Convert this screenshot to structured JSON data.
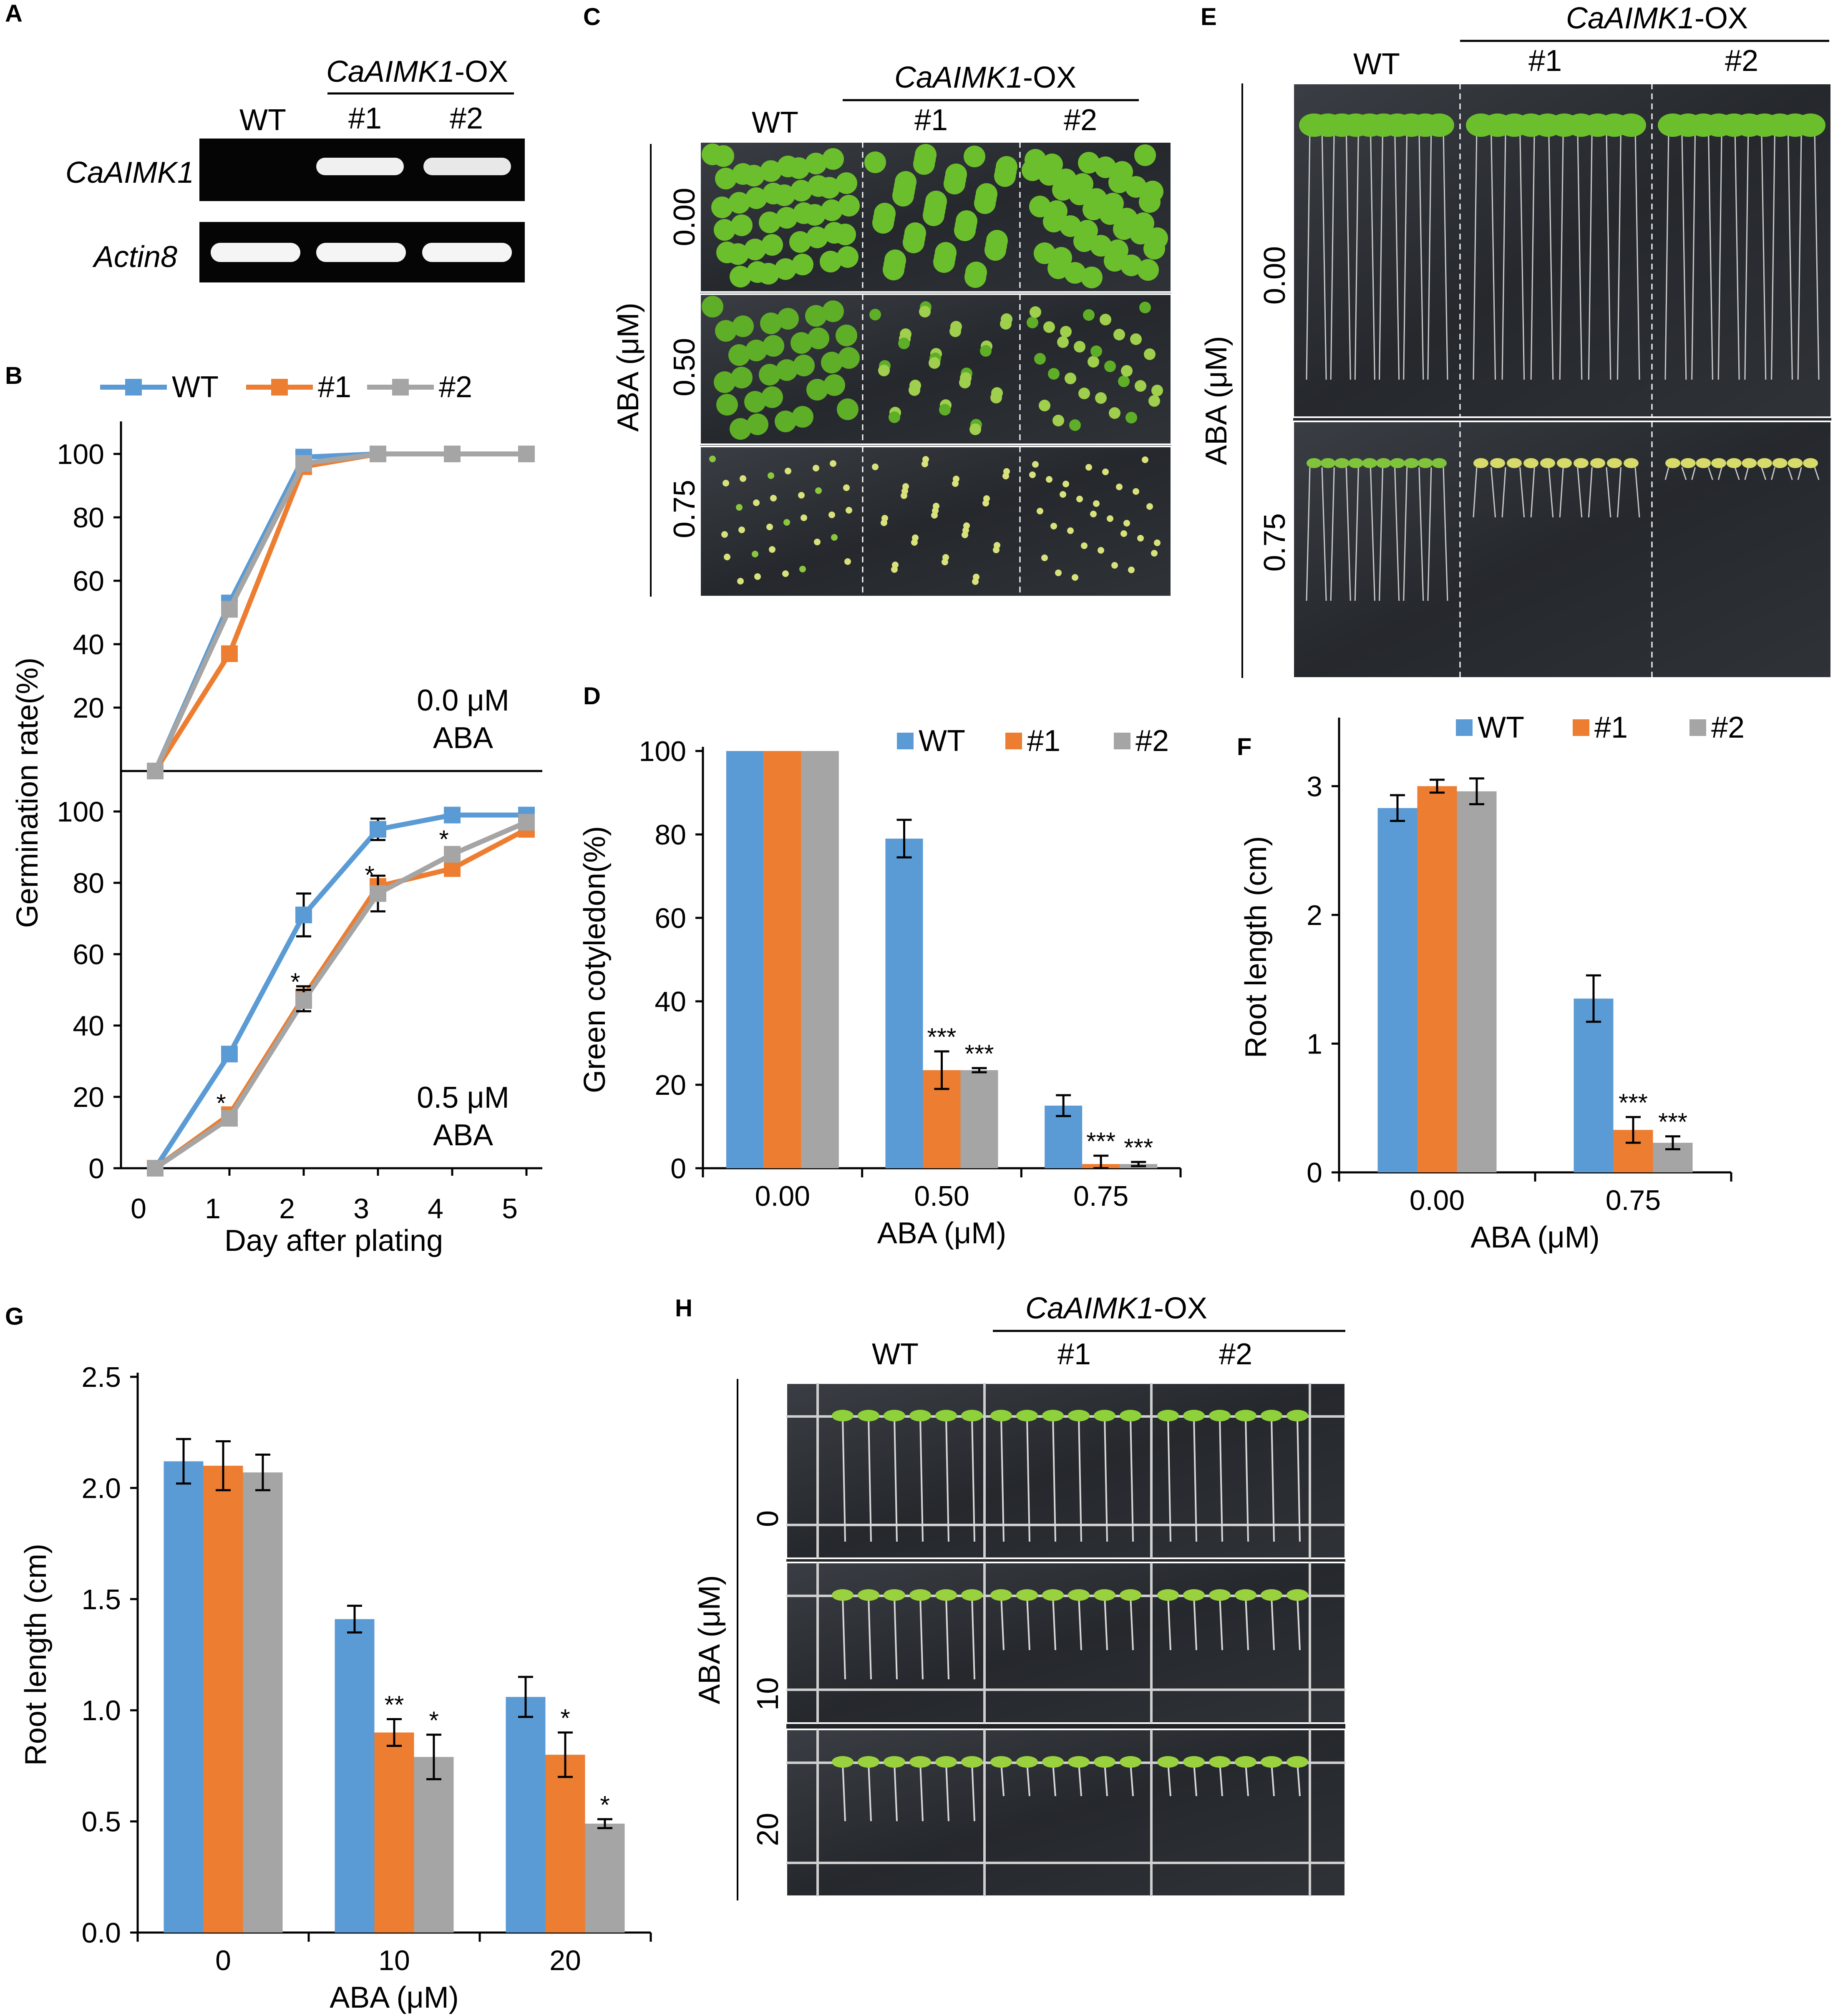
{
  "colors": {
    "wt": "#5b9bd5",
    "oe1": "#ed7d31",
    "oe2": "#a5a5a5"
  },
  "panels": {
    "A": {
      "label": "A",
      "group_label_italic": "CaAIMK1",
      "group_label_suffix": "-OX",
      "columns": [
        "WT",
        "#1",
        "#2"
      ],
      "rows": [
        "CaAIMK1",
        "Actin8"
      ]
    },
    "C": {
      "label": "C",
      "group_label_italic": "CaAIMK1",
      "group_label_suffix": "-OX",
      "columns": [
        "WT",
        "#1",
        "#2"
      ],
      "side_label": "ABA (μM)",
      "rows": [
        "0.00",
        "0.50",
        "0.75"
      ]
    },
    "E": {
      "label": "E",
      "group_label_italic": "CaAIMK1",
      "group_label_suffix": "-OX",
      "columns": [
        "WT",
        "#1",
        "#2"
      ],
      "side_label": "ABA (μM)",
      "rows": [
        "0.00",
        "0.75"
      ]
    },
    "H": {
      "label": "H",
      "group_label_italic": "CaAIMK1",
      "group_label_suffix": "-OX",
      "columns": [
        "WT",
        "#1",
        "#2"
      ],
      "side_label": "ABA (μM)",
      "rows": [
        "0",
        "10",
        "20"
      ]
    }
  },
  "chart_data": [
    {
      "id": "B",
      "label": "B",
      "type": "line",
      "ylabel": "Germination rate(%)",
      "xlabel": "Day after plating",
      "x": [
        0,
        1,
        2,
        3,
        4,
        5
      ],
      "xticks": [
        "0",
        "1",
        "2",
        "3",
        "4",
        "5"
      ],
      "legend": [
        "WT",
        "#1",
        "#2"
      ],
      "legend_placement": "top",
      "subplots": [
        {
          "annotation": [
            "0.0 μM",
            "ABA"
          ],
          "ylim": [
            0,
            100
          ],
          "yticks": [
            "20",
            "40",
            "60",
            "80",
            "100"
          ],
          "series": [
            {
              "name": "WT",
              "values": [
                0,
                53,
                99,
                100,
                100,
                100
              ],
              "err": [
                0,
                2,
                1,
                0,
                0,
                0
              ]
            },
            {
              "name": "#1",
              "values": [
                0,
                37,
                96,
                100,
                100,
                100
              ],
              "err": [
                0,
                2,
                1,
                0,
                0,
                0
              ]
            },
            {
              "name": "#2",
              "values": [
                0,
                51,
                97,
                100,
                100,
                100
              ],
              "err": [
                0,
                2,
                1,
                0,
                0,
                0
              ]
            }
          ],
          "stars": []
        },
        {
          "annotation": [
            "0.5 μM",
            "ABA"
          ],
          "ylim": [
            0,
            100
          ],
          "yticks": [
            "0",
            "20",
            "40",
            "60",
            "80",
            "100"
          ],
          "series": [
            {
              "name": "WT",
              "values": [
                0,
                32,
                71,
                95,
                99,
                99
              ],
              "err": [
                0,
                1.5,
                6,
                3,
                1,
                1
              ]
            },
            {
              "name": "#1",
              "values": [
                0,
                15,
                48,
                79,
                84,
                95
              ],
              "err": [
                0,
                1.5,
                3,
                2,
                1.5,
                2
              ]
            },
            {
              "name": "#2",
              "values": [
                0,
                14,
                47,
                77,
                88,
                97
              ],
              "err": [
                0,
                1.5,
                3,
                5,
                2,
                2
              ]
            }
          ],
          "stars": [
            {
              "x": 1,
              "y": 17,
              "text": "*"
            },
            {
              "x": 2,
              "y": 51,
              "text": "*"
            },
            {
              "x": 3,
              "y": 81,
              "text": "*"
            },
            {
              "x": 4,
              "y": 91,
              "text": "*"
            }
          ]
        }
      ]
    },
    {
      "id": "D",
      "label": "D",
      "type": "bar",
      "categories": [
        "0.00",
        "0.50",
        "0.75"
      ],
      "xlabel": "ABA (μM)",
      "ylabel": "Green cotyledon(%)",
      "ylim": [
        0,
        100
      ],
      "yticks": [
        "0",
        "20",
        "40",
        "60",
        "80",
        "100"
      ],
      "legend_placement": "top-right",
      "series": [
        {
          "name": "WT",
          "values": [
            100,
            79,
            15
          ],
          "err": [
            0,
            4.5,
            2.5
          ]
        },
        {
          "name": "#1",
          "values": [
            100,
            23.5,
            1
          ],
          "err": [
            0,
            4.5,
            2
          ]
        },
        {
          "name": "#2",
          "values": [
            100,
            23.5,
            1
          ],
          "err": [
            0,
            0.5,
            0.5
          ]
        }
      ],
      "stars": [
        {
          "cat": 1,
          "series": 1,
          "text": "***"
        },
        {
          "cat": 1,
          "series": 2,
          "text": "***"
        },
        {
          "cat": 2,
          "series": 1,
          "text": "***"
        },
        {
          "cat": 2,
          "series": 2,
          "text": "***"
        }
      ]
    },
    {
      "id": "F",
      "label": "F",
      "type": "bar",
      "categories": [
        "0.00",
        "0.75"
      ],
      "xlabel": "ABA (μM)",
      "ylabel": "Root length (cm)",
      "ylim": [
        0,
        3.5
      ],
      "yticks": [
        "0",
        "1",
        "2",
        "3"
      ],
      "legend_placement": "top",
      "series": [
        {
          "name": "WT",
          "values": [
            2.83,
            1.35
          ],
          "err": [
            0.1,
            0.18
          ]
        },
        {
          "name": "#1",
          "values": [
            3.0,
            0.33
          ],
          "err": [
            0.05,
            0.1
          ]
        },
        {
          "name": "#2",
          "values": [
            2.96,
            0.23
          ],
          "err": [
            0.1,
            0.05
          ]
        }
      ],
      "stars": [
        {
          "cat": 1,
          "series": 1,
          "text": "***"
        },
        {
          "cat": 1,
          "series": 2,
          "text": "***"
        }
      ]
    },
    {
      "id": "G",
      "label": "G",
      "type": "bar",
      "categories": [
        "0",
        "10",
        "20"
      ],
      "xlabel": "ABA (μM)",
      "ylabel": "Root length (cm)",
      "ylim": [
        0,
        2.5
      ],
      "yticks": [
        "0.0",
        "0.5",
        "1.0",
        "1.5",
        "2.0",
        "2.5"
      ],
      "series": [
        {
          "name": "WT",
          "values": [
            2.12,
            1.41,
            1.06
          ],
          "err": [
            0.1,
            0.06,
            0.09
          ]
        },
        {
          "name": "#1",
          "values": [
            2.1,
            0.9,
            0.8
          ],
          "err": [
            0.11,
            0.06,
            0.1
          ]
        },
        {
          "name": "#2",
          "values": [
            2.07,
            0.79,
            0.49
          ],
          "err": [
            0.08,
            0.1,
            0.02
          ]
        }
      ],
      "stars": [
        {
          "cat": 1,
          "series": 1,
          "text": "**"
        },
        {
          "cat": 1,
          "series": 2,
          "text": "*"
        },
        {
          "cat": 2,
          "series": 1,
          "text": "*"
        },
        {
          "cat": 2,
          "series": 2,
          "text": "*"
        }
      ]
    }
  ]
}
